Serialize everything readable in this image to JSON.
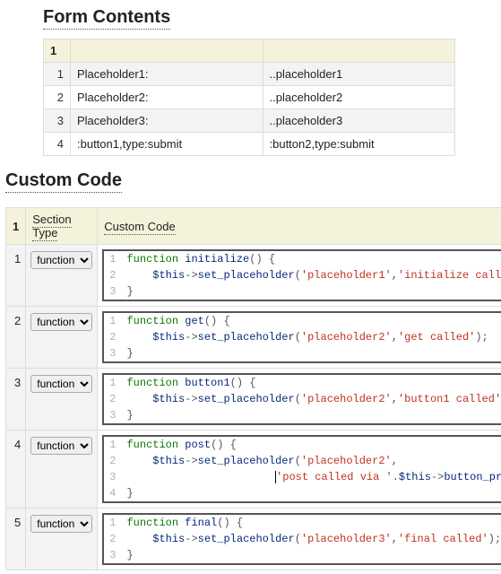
{
  "form_contents": {
    "title": "Form Contents",
    "header_num": "1",
    "rows": [
      {
        "n": "1",
        "left": "Placeholder1:",
        "right": "..placeholder1"
      },
      {
        "n": "2",
        "left": "Placeholder2:",
        "right": "..placeholder2"
      },
      {
        "n": "3",
        "left": "Placeholder3:",
        "right": "..placeholder3"
      },
      {
        "n": "4",
        "left": ":button1,type:submit",
        "right": ":button2,type:submit"
      }
    ]
  },
  "custom_code": {
    "title": "Custom Code",
    "header_num": "1",
    "col_section_type": "Section Type",
    "col_code": "Custom Code",
    "type_option": "function",
    "rows": [
      {
        "n": "1",
        "func": "initialize",
        "ph": "placeholder1",
        "msg": "initialize called"
      },
      {
        "n": "2",
        "func": "get",
        "ph": "placeholder2",
        "msg": "get called"
      },
      {
        "n": "3",
        "func": "button1",
        "ph": "placeholder2",
        "msg": "button1 called"
      },
      {
        "n": "4",
        "func": "post",
        "ph": "placeholder2",
        "msg_prefix": "post called via ",
        "tail_expr": ".$this->button_pressed"
      },
      {
        "n": "5",
        "func": "final",
        "ph": "placeholder3",
        "msg": "final called"
      }
    ]
  }
}
